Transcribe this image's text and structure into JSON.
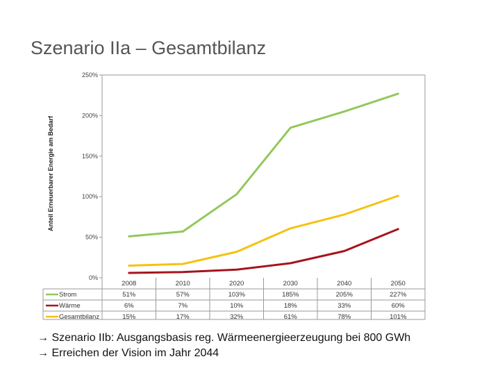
{
  "slide": {
    "title": "Szenario IIa – Gesamtbilanz",
    "notes": [
      "→ Szenario IIb: Ausgangsbasis reg. Wärmeenergieerzeugung bei 800 GWh",
      "→ Erreichen der Vision im Jahr 2044"
    ]
  },
  "chart_data": {
    "type": "line",
    "title": "",
    "xlabel": "",
    "ylabel": "Anteil Erneuerbarer Energie am Bedarf",
    "categories": [
      "2008",
      "2010",
      "2020",
      "2030",
      "2040",
      "2050"
    ],
    "ylim": [
      0,
      250
    ],
    "yticks": [
      "0%",
      "50%",
      "100%",
      "150%",
      "200%",
      "250%"
    ],
    "grid": false,
    "legend": "data-table-left",
    "series": [
      {
        "name": "Strom",
        "color": "#92c85a",
        "values": [
          51,
          57,
          103,
          185,
          205,
          227
        ],
        "labels": [
          "51%",
          "57%",
          "103%",
          "185%",
          "205%",
          "227%"
        ]
      },
      {
        "name": "Wärme",
        "color": "#a6141b",
        "values": [
          6,
          7,
          10,
          18,
          33,
          60
        ],
        "labels": [
          "6%",
          "7%",
          "10%",
          "18%",
          "33%",
          "60%"
        ]
      },
      {
        "name": "Gesamtbilanz",
        "color": "#f5c211",
        "values": [
          15,
          17,
          32,
          61,
          78,
          101
        ],
        "labels": [
          "15%",
          "17%",
          "32%",
          "61%",
          "78%",
          "101%"
        ]
      }
    ]
  }
}
